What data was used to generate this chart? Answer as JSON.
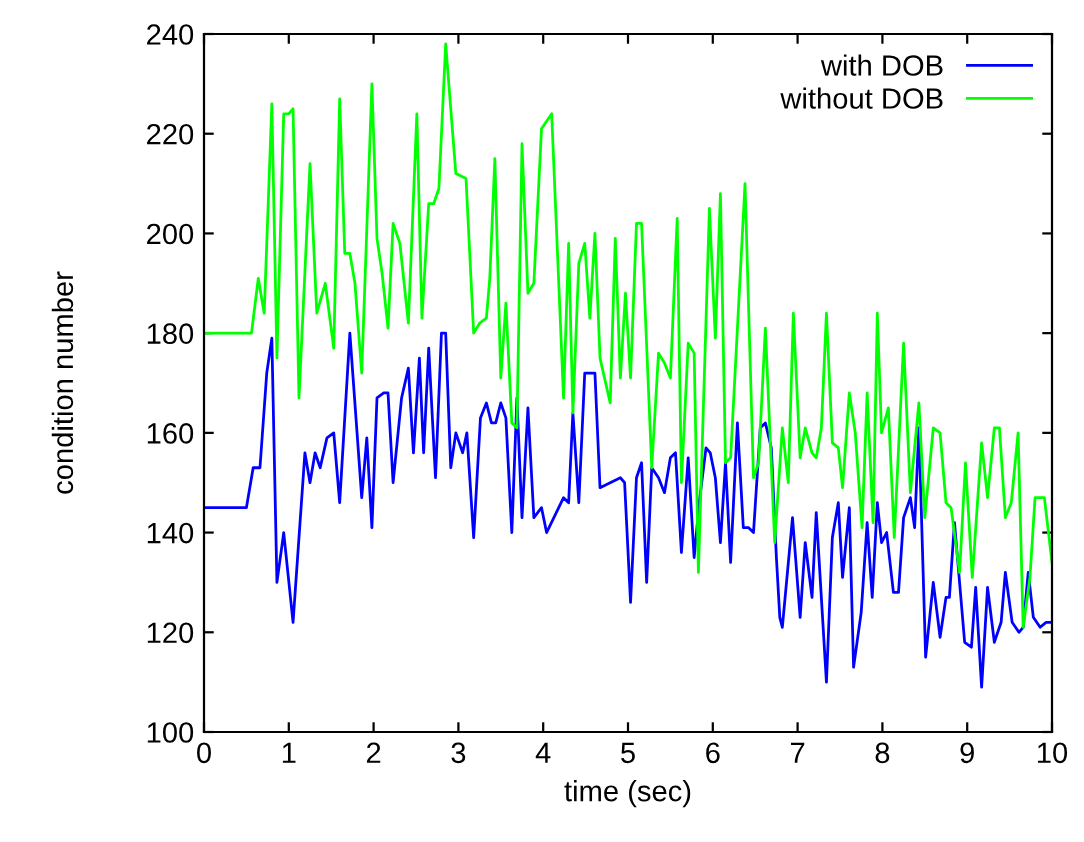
{
  "chart_data": {
    "type": "line",
    "xlabel": "time (sec)",
    "ylabel": "condition number",
    "xlim": [
      0,
      10
    ],
    "xticks": [
      0,
      1,
      2,
      3,
      4,
      5,
      6,
      7,
      8,
      9,
      10
    ],
    "ylim": [
      100,
      240
    ],
    "yticks": [
      100,
      120,
      140,
      160,
      180,
      200,
      220,
      240
    ],
    "grid": false,
    "legend": "top right",
    "marker": "none",
    "line_style": "solid",
    "series": [
      {
        "name": "with DOB",
        "color": "#0000ff",
        "x": [
          0,
          0.5,
          0.58,
          0.66,
          0.74,
          0.8,
          0.86,
          0.94,
          1.05,
          1.19,
          1.25,
          1.31,
          1.37,
          1.45,
          1.53,
          1.6,
          1.72,
          1.86,
          1.92,
          1.98,
          2.04,
          2.12,
          2.17,
          2.23,
          2.33,
          2.41,
          2.47,
          2.54,
          2.59,
          2.65,
          2.73,
          2.8,
          2.85,
          2.91,
          2.97,
          3.05,
          3.1,
          3.18,
          3.26,
          3.33,
          3.39,
          3.44,
          3.5,
          3.56,
          3.63,
          3.69,
          3.75,
          3.82,
          3.89,
          3.98,
          4.04,
          4.24,
          4.3,
          4.35,
          4.42,
          4.49,
          4.61,
          4.67,
          4.79,
          4.91,
          4.96,
          5.03,
          5.1,
          5.16,
          5.22,
          5.28,
          5.36,
          5.43,
          5.5,
          5.56,
          5.63,
          5.71,
          5.78,
          5.84,
          5.92,
          5.97,
          6.03,
          6.09,
          6.15,
          6.21,
          6.29,
          6.36,
          6.42,
          6.48,
          6.56,
          6.62,
          6.69,
          6.75,
          6.79,
          6.82,
          6.94,
          7.03,
          7.09,
          7.17,
          7.22,
          7.34,
          7.41,
          7.48,
          7.53,
          7.61,
          7.66,
          7.75,
          7.82,
          7.88,
          7.94,
          7.99,
          8.05,
          8.13,
          8.19,
          8.25,
          8.33,
          8.38,
          8.43,
          8.51,
          8.6,
          8.68,
          8.75,
          8.79,
          8.85,
          8.97,
          9.05,
          9.1,
          9.17,
          9.24,
          9.32,
          9.4,
          9.45,
          9.53,
          9.61,
          9.66,
          9.72,
          9.78,
          9.86,
          9.93,
          10
        ],
        "values": [
          145,
          145,
          153,
          153,
          172,
          179,
          130,
          140,
          122,
          156,
          150,
          156,
          153,
          159,
          160,
          146,
          180,
          147,
          159,
          141,
          167,
          168,
          168,
          150,
          167,
          173,
          156,
          175,
          156,
          177,
          151,
          180,
          180,
          153,
          160,
          156,
          160,
          139,
          163,
          166,
          162,
          162,
          166,
          163,
          140,
          167,
          143,
          165,
          143,
          145,
          140,
          147,
          146,
          164,
          146,
          172,
          172,
          149,
          150,
          151,
          150,
          126,
          151,
          154,
          130,
          153,
          151,
          148,
          155,
          156,
          136,
          155,
          135,
          146,
          157,
          156,
          151,
          138,
          154,
          134,
          162,
          141,
          141,
          140,
          161,
          162,
          157,
          135,
          123,
          121,
          143,
          123,
          138,
          127,
          144,
          110,
          139,
          146,
          131,
          145,
          113,
          124,
          142,
          127,
          146,
          138,
          140,
          128,
          128,
          143,
          147,
          141,
          161,
          115,
          130,
          119,
          127,
          127,
          142,
          118,
          117,
          129,
          109,
          129,
          118,
          122,
          132,
          122,
          120,
          121,
          132,
          123,
          121,
          122,
          122
        ]
      },
      {
        "name": "without DOB",
        "color": "#00ff00",
        "x": [
          0,
          0.56,
          0.64,
          0.71,
          0.8,
          0.86,
          0.94,
          1.0,
          1.05,
          1.12,
          1.25,
          1.33,
          1.43,
          1.53,
          1.6,
          1.66,
          1.72,
          1.78,
          1.86,
          1.98,
          2.04,
          2.1,
          2.17,
          2.23,
          2.31,
          2.41,
          2.51,
          2.57,
          2.65,
          2.71,
          2.77,
          2.85,
          2.97,
          3.09,
          3.18,
          3.25,
          3.33,
          3.37,
          3.43,
          3.5,
          3.56,
          3.63,
          3.69,
          3.75,
          3.82,
          3.89,
          3.98,
          4.1,
          4.24,
          4.3,
          4.35,
          4.42,
          4.49,
          4.55,
          4.61,
          4.67,
          4.79,
          4.85,
          4.91,
          4.97,
          5.03,
          5.1,
          5.16,
          5.28,
          5.36,
          5.43,
          5.5,
          5.58,
          5.63,
          5.71,
          5.78,
          5.83,
          5.96,
          6.03,
          6.09,
          6.15,
          6.21,
          6.38,
          6.48,
          6.54,
          6.62,
          6.73,
          6.82,
          6.89,
          6.95,
          7.03,
          7.09,
          7.17,
          7.22,
          7.28,
          7.34,
          7.41,
          7.48,
          7.53,
          7.61,
          7.68,
          7.76,
          7.82,
          7.89,
          7.94,
          7.99,
          8.07,
          8.14,
          8.25,
          8.33,
          8.43,
          8.5,
          8.6,
          8.68,
          8.75,
          8.81,
          8.91,
          8.98,
          9.06,
          9.17,
          9.24,
          9.32,
          9.38,
          9.45,
          9.52,
          9.6,
          9.66,
          9.74,
          9.8,
          9.91,
          10
        ],
        "values": [
          180,
          180,
          191,
          184,
          226,
          175,
          224,
          224,
          225,
          167,
          214,
          184,
          190,
          177,
          227,
          196,
          196,
          190,
          172,
          230,
          199,
          192,
          181,
          202,
          198,
          182,
          224,
          183,
          206,
          206,
          209,
          238,
          212,
          211,
          180,
          182,
          183,
          191,
          215,
          171,
          186,
          162,
          161,
          218,
          188,
          190,
          221,
          224,
          167,
          198,
          164,
          194,
          198,
          183,
          200,
          175,
          166,
          199,
          171,
          188,
          171,
          202,
          202,
          153,
          176,
          174,
          171,
          203,
          150,
          178,
          176,
          132,
          205,
          179,
          208,
          154,
          155,
          210,
          151,
          154,
          181,
          138,
          161,
          150,
          184,
          155,
          161,
          156,
          155,
          161,
          184,
          158,
          157,
          149,
          168,
          160,
          141,
          168,
          142,
          184,
          160,
          165,
          139,
          178,
          148,
          166,
          143,
          161,
          160,
          146,
          145,
          132,
          154,
          131,
          158,
          147,
          161,
          161,
          143,
          146,
          160,
          121,
          131,
          147,
          147,
          134
        ]
      }
    ]
  }
}
